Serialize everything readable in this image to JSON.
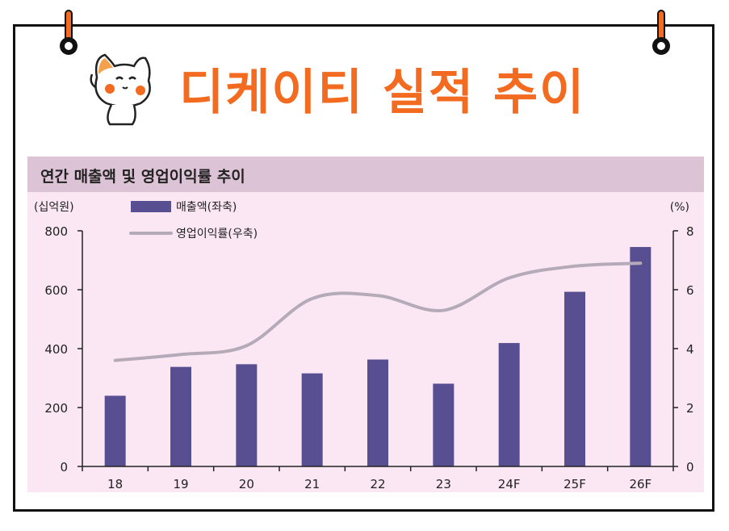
{
  "headline": "디케이티 실적 추이",
  "colors": {
    "accent": "#f26b21",
    "bar": "#574f91",
    "line": "#b5abb8",
    "panel": "#fbe7f4",
    "title_bar": "#dcc3d6"
  },
  "icons": [
    "binder-pin-icon",
    "cat-mascot-icon"
  ],
  "chart_data": {
    "type": "bar",
    "title": "연간 매출액 및 영업이익률 추이",
    "categories": [
      "18",
      "19",
      "20",
      "21",
      "22",
      "23",
      "24F",
      "25F",
      "26F"
    ],
    "y_left": {
      "unit_label": "(십억원)",
      "ylim": [
        0,
        800
      ],
      "ticks": [
        "800",
        "600",
        "400",
        "200",
        "0"
      ]
    },
    "y_right": {
      "unit_label": "(%)",
      "ylim": [
        0,
        8
      ],
      "ticks": [
        "8",
        "6",
        "4",
        "2",
        "0"
      ]
    },
    "series": [
      {
        "name": "매출액(좌축)",
        "type": "bar",
        "axis": "left",
        "values": [
          240,
          338,
          347,
          316,
          363,
          281,
          419,
          593,
          745
        ]
      },
      {
        "name": "영업이익률(우축)",
        "type": "line",
        "axis": "right",
        "values": [
          3.6,
          3.8,
          4.1,
          5.7,
          5.8,
          5.3,
          6.4,
          6.8,
          6.9
        ]
      }
    ],
    "legend": "top-left",
    "grid": false
  }
}
